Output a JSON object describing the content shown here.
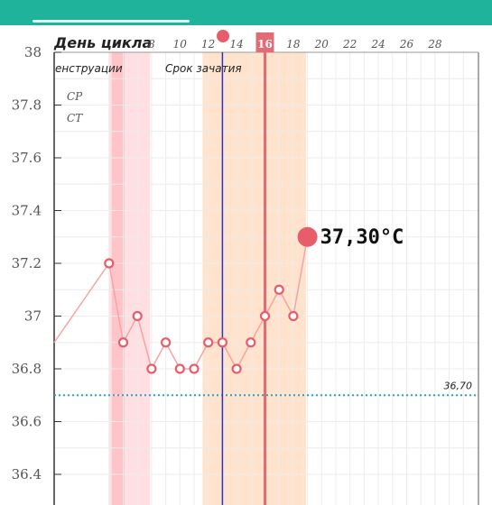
{
  "chart_data": {
    "type": "line",
    "xlabel": "День цикла",
    "x_ticks": [
      8,
      10,
      12,
      14,
      16,
      18,
      20,
      22,
      24,
      26,
      28
    ],
    "current_day": 16,
    "y_ticks": [
      "38",
      "37.8",
      "37.6",
      "37.4",
      "37.2",
      "37",
      "36.8",
      "36.6",
      "36.4"
    ],
    "ylim": [
      36.35,
      38.0
    ],
    "xlim": [
      4.2,
      30.5
    ],
    "series": [
      {
        "x": [
          5,
          6,
          7,
          8,
          9,
          10,
          11,
          12,
          13,
          14,
          15,
          16
        ],
        "values": [
          37.2,
          36.9,
          37.0,
          36.8,
          36.9,
          36.8,
          36.8,
          36.9,
          36.9,
          36.8,
          36.9,
          37.0
        ]
      },
      {
        "x": [
          17,
          18,
          19
        ],
        "values": [
          37.1,
          37.0,
          37.3
        ]
      }
    ],
    "current_value": 37.3,
    "current_value_label": "37,30°C",
    "coverline": {
      "value": 36.7,
      "label": "36,70"
    },
    "bands": [
      {
        "label": "енструации",
        "type": "menstruation",
        "x_start": 5.0,
        "x_end": 7.9
      },
      {
        "label": "Срок зачатия",
        "type": "fertile",
        "x_start": 11.6,
        "x_end": 18.9
      }
    ],
    "side_labels": [
      "СР",
      "СТ"
    ],
    "grid": true
  },
  "colors": {
    "header": "#1fb39c",
    "menstruation_band": "#ffdfe1",
    "menstruation_dark": "#ffc4c8",
    "fertile_band": "#ffe3cc",
    "line": "#f5a3a5",
    "marker": "#e85d6a",
    "current_line": "#e06c75",
    "ovulation_line": "#2b32c9",
    "coverline": "#29a3c5"
  }
}
